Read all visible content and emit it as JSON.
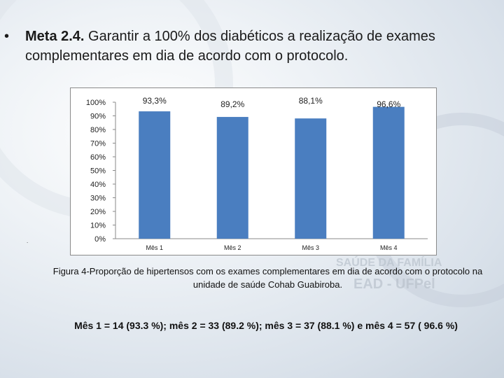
{
  "slide": {
    "bullet": "•",
    "title_bold": "Meta 2.4.",
    "title_rest": " Garantir a 100% dos diabéticos a realização de exames complementares em dia de acordo com o protocolo.",
    "dot": ".",
    "caption": "Figura 4-Proporção de hipertensos com os exames complementares em dia de acordo com o protocolo na unidade de saúde Cohab Guabiroba.",
    "summary": "Mês 1 = 14 (93.3 %); mês 2 = 33 (89.2 %); mês 3 =  37 (88.1 %) e mês 4 = 57 ( 96.6 %)"
  },
  "colors": {
    "bar": "#4a7ec0",
    "axis": "#8a8a8a",
    "background_logo": "#c8cfd8"
  },
  "chart_data": {
    "type": "bar",
    "categories": [
      "Mês 1",
      "Mês 2",
      "Mês 3",
      "Mês 4"
    ],
    "values": [
      93.3,
      89.2,
      88.1,
      96.6
    ],
    "data_labels": [
      "93,3%",
      "89,2%",
      "88,1%",
      "96,6%"
    ],
    "y_ticks": [
      "0%",
      "10%",
      "20%",
      "30%",
      "40%",
      "50%",
      "60%",
      "70%",
      "80%",
      "90%",
      "100%"
    ],
    "ylim": [
      0,
      100
    ],
    "grid": false,
    "legend": "none"
  }
}
